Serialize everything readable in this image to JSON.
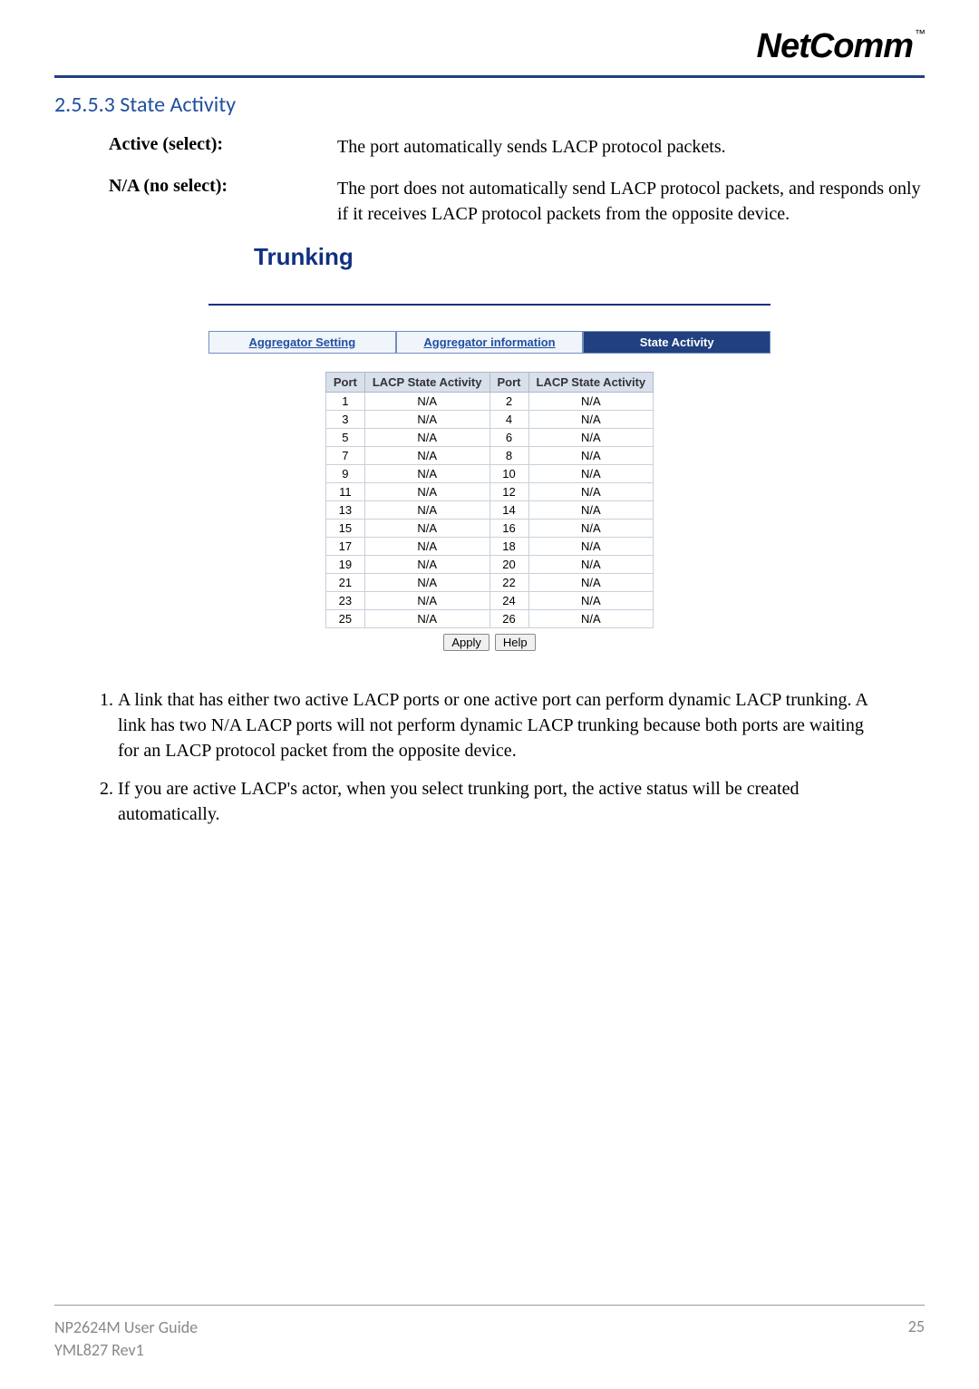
{
  "logo": {
    "text": "NetComm",
    "tm": "™"
  },
  "section": {
    "number": "2.5.5.3",
    "title": "State Activity"
  },
  "definitions": [
    {
      "label": "Active (select):",
      "desc": "The port automatically sends LACP protocol packets."
    },
    {
      "label": "N/A (no select):",
      "desc": "The port does not automatically send LACP protocol packets, and responds only if it receives LACP protocol packets from the opposite device."
    }
  ],
  "trunking": {
    "title": "Trunking",
    "tabs": [
      {
        "label": "Aggregator Setting",
        "active": false
      },
      {
        "label": "Aggregator information",
        "active": false
      },
      {
        "label": "State Activity",
        "active": true
      }
    ],
    "table": {
      "columns": [
        "Port",
        "LACP State Activity",
        "Port",
        "LACP State Activity"
      ],
      "rows": [
        [
          "1",
          "N/A",
          "2",
          "N/A"
        ],
        [
          "3",
          "N/A",
          "4",
          "N/A"
        ],
        [
          "5",
          "N/A",
          "6",
          "N/A"
        ],
        [
          "7",
          "N/A",
          "8",
          "N/A"
        ],
        [
          "9",
          "N/A",
          "10",
          "N/A"
        ],
        [
          "11",
          "N/A",
          "12",
          "N/A"
        ],
        [
          "13",
          "N/A",
          "14",
          "N/A"
        ],
        [
          "15",
          "N/A",
          "16",
          "N/A"
        ],
        [
          "17",
          "N/A",
          "18",
          "N/A"
        ],
        [
          "19",
          "N/A",
          "20",
          "N/A"
        ],
        [
          "21",
          "N/A",
          "22",
          "N/A"
        ],
        [
          "23",
          "N/A",
          "24",
          "N/A"
        ],
        [
          "25",
          "N/A",
          "26",
          "N/A"
        ]
      ]
    },
    "buttons": {
      "apply": "Apply",
      "help": "Help"
    }
  },
  "notes": [
    "A link that has either two active LACP ports or one active port can perform dynamic LACP trunking.  A link has two N/A LACP ports will not perform dynamic LACP trunking because both ports are waiting for an LACP protocol packet from the opposite device.",
    "If you are active LACP's actor, when you select trunking port, the active status will be created automatically."
  ],
  "footer": {
    "line1": "NP2624M User Guide",
    "line2": "YML827 Rev1",
    "page": "25"
  }
}
